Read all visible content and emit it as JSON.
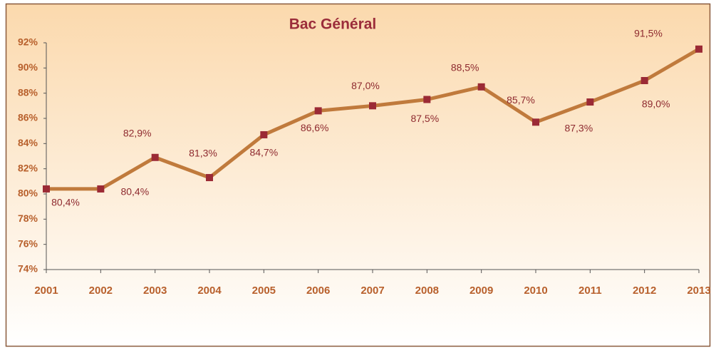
{
  "chart_data": {
    "type": "line",
    "title": "Bac Général",
    "categories": [
      "2001",
      "2002",
      "2003",
      "2004",
      "2005",
      "2006",
      "2007",
      "2008",
      "2009",
      "2010",
      "2011",
      "2012",
      "2013"
    ],
    "series": [
      {
        "name": "Bac Général",
        "color": "#c07a3c",
        "marker_color": "#9b2a35",
        "values": [
          80.4,
          80.4,
          82.9,
          81.3,
          84.7,
          86.6,
          87.0,
          87.5,
          88.5,
          85.7,
          87.3,
          89.0,
          91.5
        ],
        "value_labels": [
          "80,4%",
          "80,4%",
          "82,9%",
          "81,3%",
          "84,7%",
          "86,6%",
          "87,0%",
          "87,5%",
          "88,5%",
          "85,7%",
          "87,3%",
          "89,0%",
          "91,5%"
        ]
      }
    ],
    "ylim": [
      74,
      92
    ],
    "yticks": [
      {
        "value": 74,
        "label": "74%"
      },
      {
        "value": 76,
        "label": "76%"
      },
      {
        "value": 78,
        "label": "78%"
      },
      {
        "value": 80,
        "label": "80%"
      },
      {
        "value": 82,
        "label": "82%"
      },
      {
        "value": 84,
        "label": "84%"
      },
      {
        "value": 86,
        "label": "86%"
      },
      {
        "value": 88,
        "label": "88%"
      },
      {
        "value": 90,
        "label": "90%"
      },
      {
        "value": 92,
        "label": "92%"
      }
    ],
    "grid": false
  }
}
